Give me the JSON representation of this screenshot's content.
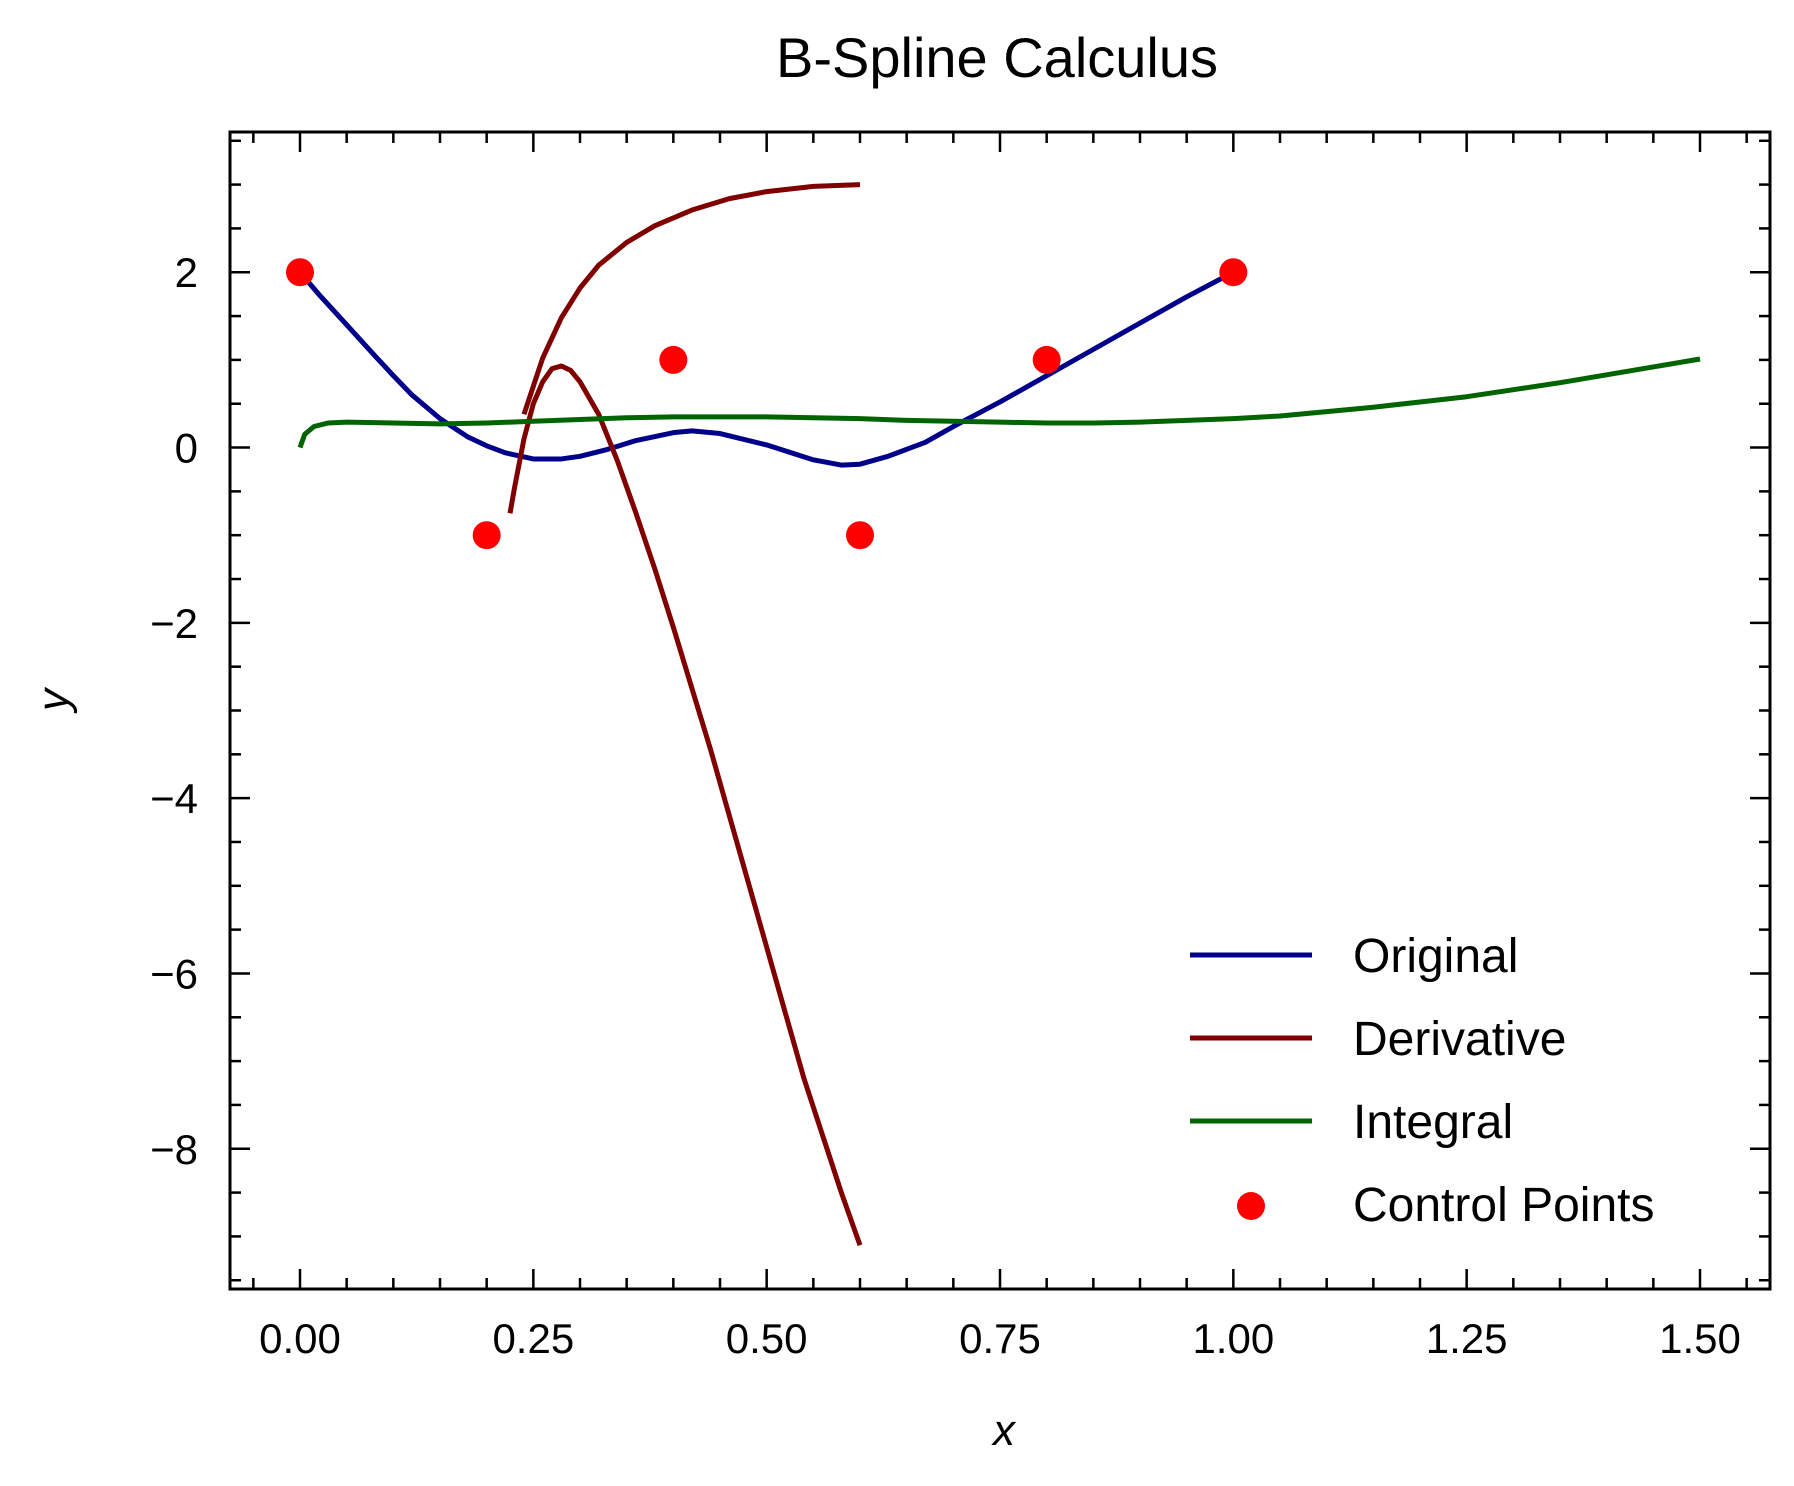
{
  "chart_data": {
    "type": "line",
    "title": "B-Spline Calculus",
    "xlabel": "x",
    "ylabel": "y",
    "xlim": [
      -0.075,
      1.575
    ],
    "ylim": [
      -9.6,
      3.6
    ],
    "xticks": [
      0.0,
      0.25,
      0.5,
      0.75,
      1.0,
      1.25,
      1.5
    ],
    "xtick_labels": [
      "0.00",
      "0.25",
      "0.50",
      "0.75",
      "1.00",
      "1.25",
      "1.50"
    ],
    "yticks": [
      2,
      0,
      -2,
      -4,
      -6,
      -8
    ],
    "ytick_labels": [
      "2",
      "0",
      "−2",
      "−4",
      "−6",
      "−8"
    ],
    "grid": false,
    "legend_position": "bottom-right",
    "series": [
      {
        "name": "Original",
        "kind": "line",
        "color": "#00008b",
        "points": [
          [
            0.0,
            2.0
          ],
          [
            0.02,
            1.75
          ],
          [
            0.05,
            1.4
          ],
          [
            0.08,
            1.05
          ],
          [
            0.1,
            0.82
          ],
          [
            0.12,
            0.6
          ],
          [
            0.15,
            0.33
          ],
          [
            0.18,
            0.12
          ],
          [
            0.2,
            0.02
          ],
          [
            0.22,
            -0.06
          ],
          [
            0.25,
            -0.13
          ],
          [
            0.28,
            -0.13
          ],
          [
            0.3,
            -0.1
          ],
          [
            0.33,
            -0.02
          ],
          [
            0.36,
            0.08
          ],
          [
            0.4,
            0.17
          ],
          [
            0.42,
            0.19
          ],
          [
            0.45,
            0.16
          ],
          [
            0.5,
            0.03
          ],
          [
            0.55,
            -0.14
          ],
          [
            0.58,
            -0.2
          ],
          [
            0.6,
            -0.19
          ],
          [
            0.63,
            -0.1
          ],
          [
            0.67,
            0.06
          ],
          [
            0.7,
            0.24
          ],
          [
            0.75,
            0.52
          ],
          [
            0.8,
            0.82
          ],
          [
            0.85,
            1.12
          ],
          [
            0.9,
            1.42
          ],
          [
            0.95,
            1.72
          ],
          [
            1.0,
            2.0
          ]
        ]
      },
      {
        "name": "Derivative",
        "kind": "line",
        "color": "#800000",
        "points": [
          [
            0.225,
            -0.75
          ],
          [
            0.23,
            -0.45
          ],
          [
            0.24,
            0.1
          ],
          [
            0.25,
            0.5
          ],
          [
            0.26,
            0.75
          ],
          [
            0.27,
            0.9
          ],
          [
            0.28,
            0.93
          ],
          [
            0.29,
            0.88
          ],
          [
            0.3,
            0.75
          ],
          [
            0.32,
            0.38
          ],
          [
            0.34,
            -0.15
          ],
          [
            0.36,
            -0.75
          ],
          [
            0.38,
            -1.38
          ],
          [
            0.4,
            -2.05
          ],
          [
            0.42,
            -2.75
          ],
          [
            0.44,
            -3.45
          ],
          [
            0.46,
            -4.2
          ],
          [
            0.48,
            -4.95
          ],
          [
            0.5,
            -5.7
          ],
          [
            0.52,
            -6.45
          ],
          [
            0.54,
            -7.2
          ],
          [
            0.56,
            -7.85
          ],
          [
            0.58,
            -8.5
          ],
          [
            0.6,
            -9.1
          ]
        ]
      },
      {
        "name": "",
        "kind": "line",
        "color": "#800000",
        "points": [
          [
            0.24,
            0.38
          ],
          [
            0.26,
            1.02
          ],
          [
            0.28,
            1.48
          ],
          [
            0.3,
            1.82
          ],
          [
            0.32,
            2.08
          ],
          [
            0.35,
            2.34
          ],
          [
            0.38,
            2.53
          ],
          [
            0.42,
            2.71
          ],
          [
            0.46,
            2.84
          ],
          [
            0.5,
            2.92
          ],
          [
            0.55,
            2.98
          ],
          [
            0.6,
            3.0
          ]
        ]
      },
      {
        "name": "Integral",
        "kind": "line",
        "color": "#006400",
        "points": [
          [
            0.0,
            0.0
          ],
          [
            0.005,
            0.15
          ],
          [
            0.015,
            0.24
          ],
          [
            0.03,
            0.28
          ],
          [
            0.05,
            0.29
          ],
          [
            0.1,
            0.28
          ],
          [
            0.15,
            0.27
          ],
          [
            0.2,
            0.28
          ],
          [
            0.25,
            0.3
          ],
          [
            0.3,
            0.32
          ],
          [
            0.35,
            0.34
          ],
          [
            0.4,
            0.35
          ],
          [
            0.45,
            0.35
          ],
          [
            0.5,
            0.35
          ],
          [
            0.55,
            0.34
          ],
          [
            0.6,
            0.33
          ],
          [
            0.65,
            0.31
          ],
          [
            0.7,
            0.3
          ],
          [
            0.75,
            0.29
          ],
          [
            0.8,
            0.28
          ],
          [
            0.85,
            0.28
          ],
          [
            0.9,
            0.29
          ],
          [
            0.95,
            0.31
          ],
          [
            1.0,
            0.33
          ],
          [
            1.05,
            0.36
          ],
          [
            1.1,
            0.41
          ],
          [
            1.15,
            0.46
          ],
          [
            1.2,
            0.52
          ],
          [
            1.25,
            0.58
          ],
          [
            1.3,
            0.66
          ],
          [
            1.35,
            0.74
          ],
          [
            1.4,
            0.83
          ],
          [
            1.45,
            0.92
          ],
          [
            1.5,
            1.01
          ]
        ]
      },
      {
        "name": "Control Points",
        "kind": "scatter",
        "color": "#ff0000",
        "points": [
          [
            0.0,
            2.0
          ],
          [
            0.2,
            -1.0
          ],
          [
            0.4,
            1.0
          ],
          [
            0.6,
            -1.0
          ],
          [
            0.8,
            1.0
          ],
          [
            1.0,
            2.0
          ]
        ]
      }
    ]
  }
}
